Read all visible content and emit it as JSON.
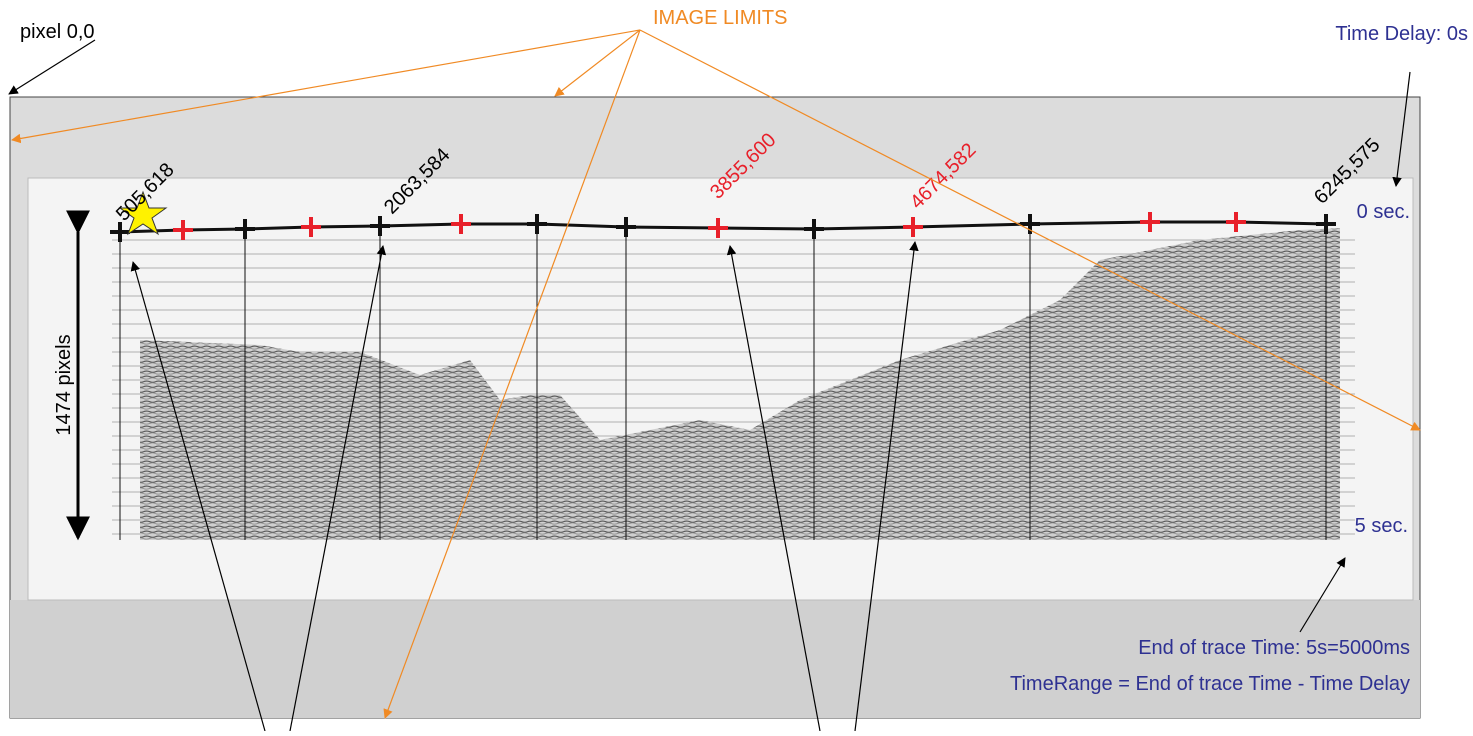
{
  "annotations": {
    "origin": "pixel 0,0",
    "image_limits": "IMAGE LIMITS",
    "time_delay": "Time Delay:  0s",
    "height": "1474 pixels",
    "points": [
      "505,618",
      "2063,584",
      "3855,600",
      "4674,582",
      "6245,575"
    ],
    "top_time": "0 sec.",
    "bottom_time": "5 sec.",
    "end_time": "End of trace Time: 5s=5000ms",
    "time_range": "TimeRange = End of trace Time - Time Delay"
  }
}
